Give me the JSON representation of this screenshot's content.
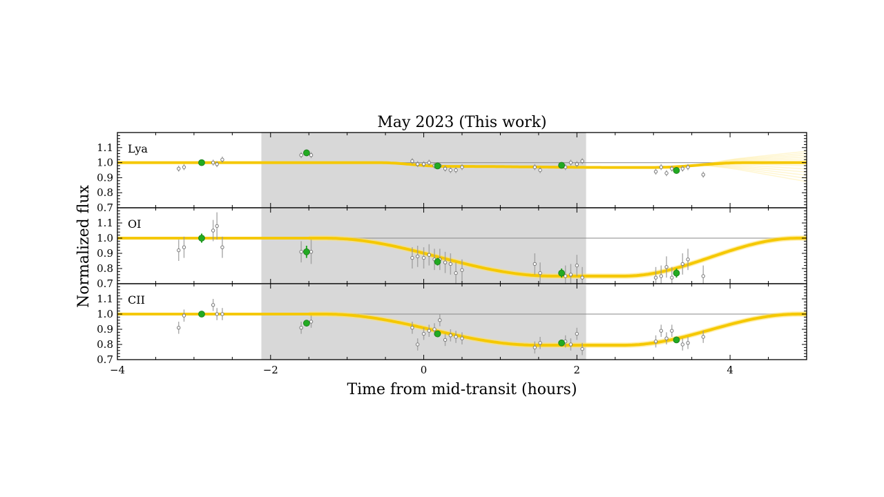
{
  "chart_data": {
    "type": "scatter",
    "title": "May 2023 (This work)",
    "xlabel": "Time from mid-transit (hours)",
    "ylabel": "Normalized flux",
    "xlim": [
      -4,
      5
    ],
    "x_ticks": [
      -4,
      -2,
      0,
      2,
      4
    ],
    "x_tick_labels": [
      "−4",
      "−2",
      "0",
      "2",
      "4"
    ],
    "y_ticks": [
      0.7,
      0.8,
      0.9,
      1.0,
      1.1
    ],
    "y_tick_labels": [
      "0.7",
      "0.8",
      "0.9",
      "1.0",
      "1.1"
    ],
    "shaded_transit": [
      -2.12,
      2.12
    ],
    "colors": {
      "model": "#f5c800",
      "model_fan": "#ffe066",
      "binned": "#22aa22",
      "raw": "#999999",
      "shade": "#d8d8d8",
      "baseline": "#888888"
    },
    "panels": [
      {
        "label": "Lya",
        "ylim": [
          0.7,
          1.2
        ],
        "model": {
          "x": [
            -4,
            -0.6,
            0.3,
            2.5,
            3.0,
            4.2,
            5.0
          ],
          "y": [
            1.0,
            1.0,
            0.975,
            0.968,
            0.968,
            1.0,
            1.0
          ]
        },
        "raw": [
          {
            "x": -3.2,
            "y": 0.96,
            "err": 0.02
          },
          {
            "x": -3.13,
            "y": 0.97,
            "err": 0.02
          },
          {
            "x": -2.75,
            "y": 1.0,
            "err": 0.02
          },
          {
            "x": -2.7,
            "y": 0.99,
            "err": 0.02
          },
          {
            "x": -2.63,
            "y": 1.02,
            "err": 0.02
          },
          {
            "x": -1.6,
            "y": 1.05,
            "err": 0.02
          },
          {
            "x": -1.47,
            "y": 1.05,
            "err": 0.02
          },
          {
            "x": -0.15,
            "y": 1.01,
            "err": 0.02
          },
          {
            "x": -0.08,
            "y": 0.99,
            "err": 0.02
          },
          {
            "x": 0.0,
            "y": 0.99,
            "err": 0.02
          },
          {
            "x": 0.07,
            "y": 1.0,
            "err": 0.02
          },
          {
            "x": 0.14,
            "y": 0.98,
            "err": 0.02
          },
          {
            "x": 0.21,
            "y": 0.98,
            "err": 0.02
          },
          {
            "x": 0.28,
            "y": 0.96,
            "err": 0.02
          },
          {
            "x": 0.35,
            "y": 0.95,
            "err": 0.02
          },
          {
            "x": 0.42,
            "y": 0.95,
            "err": 0.02
          },
          {
            "x": 0.5,
            "y": 0.97,
            "err": 0.02
          },
          {
            "x": 1.45,
            "y": 0.97,
            "err": 0.02
          },
          {
            "x": 1.52,
            "y": 0.95,
            "err": 0.02
          },
          {
            "x": 1.85,
            "y": 0.97,
            "err": 0.02
          },
          {
            "x": 1.92,
            "y": 1.0,
            "err": 0.02
          },
          {
            "x": 2.0,
            "y": 0.99,
            "err": 0.02
          },
          {
            "x": 2.07,
            "y": 1.01,
            "err": 0.02
          },
          {
            "x": 3.03,
            "y": 0.94,
            "err": 0.02
          },
          {
            "x": 3.1,
            "y": 0.97,
            "err": 0.02
          },
          {
            "x": 3.17,
            "y": 0.93,
            "err": 0.02
          },
          {
            "x": 3.24,
            "y": 0.96,
            "err": 0.02
          },
          {
            "x": 3.38,
            "y": 0.96,
            "err": 0.02
          },
          {
            "x": 3.45,
            "y": 0.97,
            "err": 0.02
          },
          {
            "x": 3.65,
            "y": 0.92,
            "err": 0.02
          }
        ],
        "binned": [
          {
            "x": -2.9,
            "y": 1.0,
            "err": 0.01
          },
          {
            "x": -1.53,
            "y": 1.065,
            "err": 0.015
          },
          {
            "x": 0.18,
            "y": 0.978,
            "err": 0.01
          },
          {
            "x": 1.8,
            "y": 0.982,
            "err": 0.01
          },
          {
            "x": 3.3,
            "y": 0.948,
            "err": 0.01
          }
        ]
      },
      {
        "label": "OI",
        "ylim": [
          0.7,
          1.2
        ],
        "model": {
          "x": [
            -4,
            -1.3,
            1.7,
            2.6,
            4.9,
            5.0
          ],
          "y": [
            1.0,
            1.0,
            0.75,
            0.75,
            1.0,
            1.0
          ]
        },
        "raw": [
          {
            "x": -3.2,
            "y": 0.92,
            "err": 0.07
          },
          {
            "x": -3.13,
            "y": 0.94,
            "err": 0.07
          },
          {
            "x": -2.75,
            "y": 1.05,
            "err": 0.07
          },
          {
            "x": -2.7,
            "y": 1.08,
            "err": 0.09
          },
          {
            "x": -2.63,
            "y": 0.94,
            "err": 0.07
          },
          {
            "x": -1.6,
            "y": 0.91,
            "err": 0.07
          },
          {
            "x": -1.47,
            "y": 0.91,
            "err": 0.08
          },
          {
            "x": -0.15,
            "y": 0.87,
            "err": 0.07
          },
          {
            "x": -0.08,
            "y": 0.88,
            "err": 0.07
          },
          {
            "x": 0.0,
            "y": 0.87,
            "err": 0.07
          },
          {
            "x": 0.07,
            "y": 0.89,
            "err": 0.07
          },
          {
            "x": 0.14,
            "y": 0.86,
            "err": 0.07
          },
          {
            "x": 0.21,
            "y": 0.86,
            "err": 0.07
          },
          {
            "x": 0.28,
            "y": 0.84,
            "err": 0.07
          },
          {
            "x": 0.35,
            "y": 0.83,
            "err": 0.07
          },
          {
            "x": 0.42,
            "y": 0.77,
            "err": 0.07
          },
          {
            "x": 0.5,
            "y": 0.79,
            "err": 0.07
          },
          {
            "x": 1.45,
            "y": 0.83,
            "err": 0.07
          },
          {
            "x": 1.52,
            "y": 0.77,
            "err": 0.07
          },
          {
            "x": 1.85,
            "y": 0.75,
            "err": 0.07
          },
          {
            "x": 1.92,
            "y": 0.76,
            "err": 0.07
          },
          {
            "x": 2.0,
            "y": 0.82,
            "err": 0.07
          },
          {
            "x": 2.07,
            "y": 0.74,
            "err": 0.07
          },
          {
            "x": 3.03,
            "y": 0.74,
            "err": 0.07
          },
          {
            "x": 3.1,
            "y": 0.75,
            "err": 0.07
          },
          {
            "x": 3.17,
            "y": 0.81,
            "err": 0.07
          },
          {
            "x": 3.24,
            "y": 0.74,
            "err": 0.07
          },
          {
            "x": 3.38,
            "y": 0.83,
            "err": 0.07
          },
          {
            "x": 3.45,
            "y": 0.86,
            "err": 0.07
          },
          {
            "x": 3.65,
            "y": 0.75,
            "err": 0.07
          }
        ],
        "binned": [
          {
            "x": -2.9,
            "y": 1.0,
            "err": 0.03
          },
          {
            "x": -1.53,
            "y": 0.91,
            "err": 0.04
          },
          {
            "x": 0.18,
            "y": 0.845,
            "err": 0.025
          },
          {
            "x": 1.8,
            "y": 0.77,
            "err": 0.03
          },
          {
            "x": 3.3,
            "y": 0.77,
            "err": 0.03
          }
        ]
      },
      {
        "label": "CII",
        "ylim": [
          0.7,
          1.2
        ],
        "model": {
          "x": [
            -4,
            -1.3,
            1.5,
            2.6,
            4.9,
            5.0
          ],
          "y": [
            1.0,
            1.0,
            0.795,
            0.795,
            1.0,
            1.0
          ]
        },
        "raw": [
          {
            "x": -3.2,
            "y": 0.91,
            "err": 0.04
          },
          {
            "x": -3.13,
            "y": 0.99,
            "err": 0.04
          },
          {
            "x": -2.75,
            "y": 1.06,
            "err": 0.04
          },
          {
            "x": -2.7,
            "y": 1.0,
            "err": 0.04
          },
          {
            "x": -2.63,
            "y": 1.0,
            "err": 0.04
          },
          {
            "x": -1.6,
            "y": 0.91,
            "err": 0.04
          },
          {
            "x": -1.47,
            "y": 0.95,
            "err": 0.04
          },
          {
            "x": -0.15,
            "y": 0.91,
            "err": 0.04
          },
          {
            "x": -0.08,
            "y": 0.8,
            "err": 0.04
          },
          {
            "x": 0.0,
            "y": 0.87,
            "err": 0.04
          },
          {
            "x": 0.07,
            "y": 0.89,
            "err": 0.04
          },
          {
            "x": 0.14,
            "y": 0.9,
            "err": 0.04
          },
          {
            "x": 0.21,
            "y": 0.96,
            "err": 0.04
          },
          {
            "x": 0.28,
            "y": 0.83,
            "err": 0.04
          },
          {
            "x": 0.35,
            "y": 0.86,
            "err": 0.04
          },
          {
            "x": 0.42,
            "y": 0.85,
            "err": 0.04
          },
          {
            "x": 0.5,
            "y": 0.84,
            "err": 0.04
          },
          {
            "x": 1.45,
            "y": 0.78,
            "err": 0.04
          },
          {
            "x": 1.52,
            "y": 0.81,
            "err": 0.04
          },
          {
            "x": 1.85,
            "y": 0.82,
            "err": 0.04
          },
          {
            "x": 1.92,
            "y": 0.8,
            "err": 0.04
          },
          {
            "x": 2.0,
            "y": 0.87,
            "err": 0.04
          },
          {
            "x": 2.07,
            "y": 0.77,
            "err": 0.04
          },
          {
            "x": 3.03,
            "y": 0.82,
            "err": 0.04
          },
          {
            "x": 3.1,
            "y": 0.89,
            "err": 0.04
          },
          {
            "x": 3.17,
            "y": 0.84,
            "err": 0.04
          },
          {
            "x": 3.24,
            "y": 0.89,
            "err": 0.04
          },
          {
            "x": 3.38,
            "y": 0.8,
            "err": 0.04
          },
          {
            "x": 3.45,
            "y": 0.81,
            "err": 0.04
          },
          {
            "x": 3.65,
            "y": 0.85,
            "err": 0.04
          }
        ],
        "binned": [
          {
            "x": -2.9,
            "y": 1.0,
            "err": 0.015
          },
          {
            "x": -1.53,
            "y": 0.94,
            "err": 0.02
          },
          {
            "x": 0.18,
            "y": 0.87,
            "err": 0.015
          },
          {
            "x": 1.8,
            "y": 0.81,
            "err": 0.015
          },
          {
            "x": 3.3,
            "y": 0.83,
            "err": 0.015
          }
        ]
      }
    ]
  }
}
